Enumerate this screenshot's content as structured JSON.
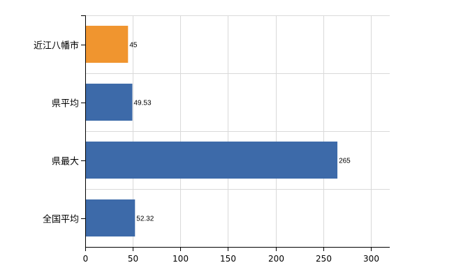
{
  "chart_data": {
    "type": "bar",
    "orientation": "horizontal",
    "categories": [
      "近江八幡市",
      "県平均",
      "県最大",
      "全国平均"
    ],
    "values": [
      45,
      49.53,
      265,
      52.32
    ],
    "value_labels": [
      "45",
      "49.53",
      "265",
      "52.32"
    ],
    "bar_colors": [
      "#f0952f",
      "#3d6aa9",
      "#3d6aa9",
      "#3d6aa9"
    ],
    "xlim": [
      0,
      320
    ],
    "xticks": [
      0,
      50,
      100,
      150,
      200,
      250,
      300
    ],
    "grid": true,
    "title": "",
    "xlabel": "",
    "ylabel": ""
  }
}
